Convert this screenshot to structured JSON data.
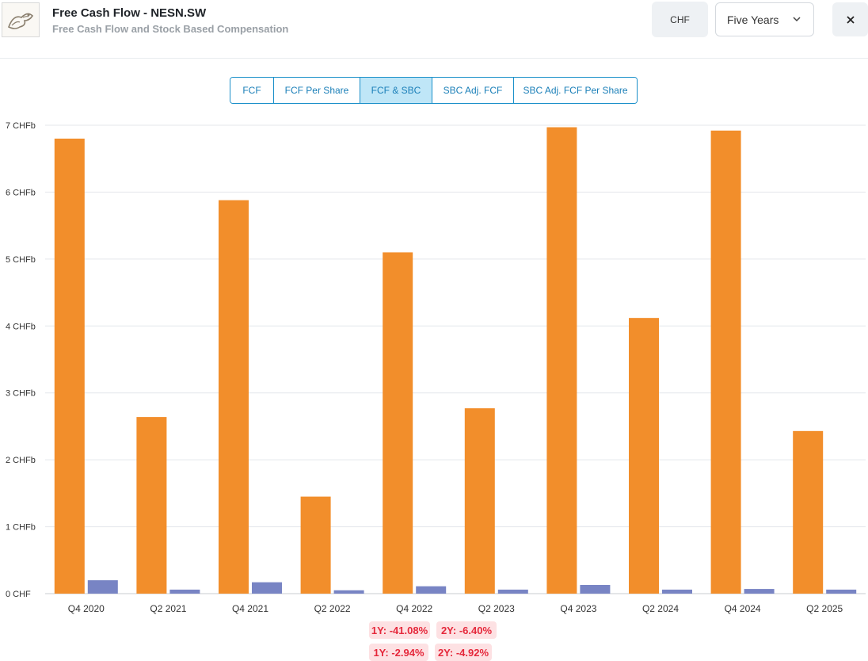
{
  "header": {
    "title": "Free Cash Flow - NESN.SW",
    "subtitle": "Free Cash Flow and Stock Based Compensation",
    "currency_label": "CHF",
    "period_selected": "Five Years",
    "close_label": "×"
  },
  "tabs": [
    {
      "label": "FCF",
      "active": false
    },
    {
      "label": "FCF Per Share",
      "active": false
    },
    {
      "label": "FCF & SBC",
      "active": true
    },
    {
      "label": "SBC Adj. FCF",
      "active": false
    },
    {
      "label": "SBC Adj. FCF Per Share",
      "active": false
    }
  ],
  "chart_data": {
    "type": "bar",
    "categories": [
      "Q4 2020",
      "Q2 2021",
      "Q4 2021",
      "Q2 2022",
      "Q4 2022",
      "Q2 2023",
      "Q4 2023",
      "Q2 2024",
      "Q4 2024",
      "Q2 2025"
    ],
    "series": [
      {
        "values": [
          6.8,
          2.64,
          5.88,
          1.45,
          5.1,
          2.77,
          6.97,
          4.12,
          6.92,
          2.43
        ],
        "color": "#f28e2b"
      },
      {
        "values": [
          0.2,
          0.06,
          0.17,
          0.05,
          0.11,
          0.06,
          0.13,
          0.06,
          0.07,
          0.06
        ],
        "color": "#7884c4"
      }
    ],
    "ylim": [
      0,
      7
    ],
    "yticks": [
      0,
      1,
      2,
      3,
      4,
      5,
      6,
      7
    ],
    "ytick_labels": [
      "0 CHF",
      "1 CHFb",
      "2 CHFb",
      "3 CHFb",
      "4 CHFb",
      "5 CHFb",
      "6 CHFb",
      "7 CHFb"
    ],
    "grid": true,
    "title": "",
    "xlabel": "",
    "ylabel": ""
  },
  "growth": {
    "fcf": {
      "one_year": "1Y: -41.08%",
      "two_year": "2Y: -6.40%"
    },
    "sbc": {
      "one_year": "1Y: -2.94%",
      "two_year": "2Y: -4.92%"
    }
  },
  "colors": {
    "accent": "#1a8fc9",
    "fcf_bar": "#f28e2b",
    "sbc_bar": "#7884c4",
    "negative_badge_bg": "#fde1e3",
    "negative_badge_text": "#e5283b"
  }
}
